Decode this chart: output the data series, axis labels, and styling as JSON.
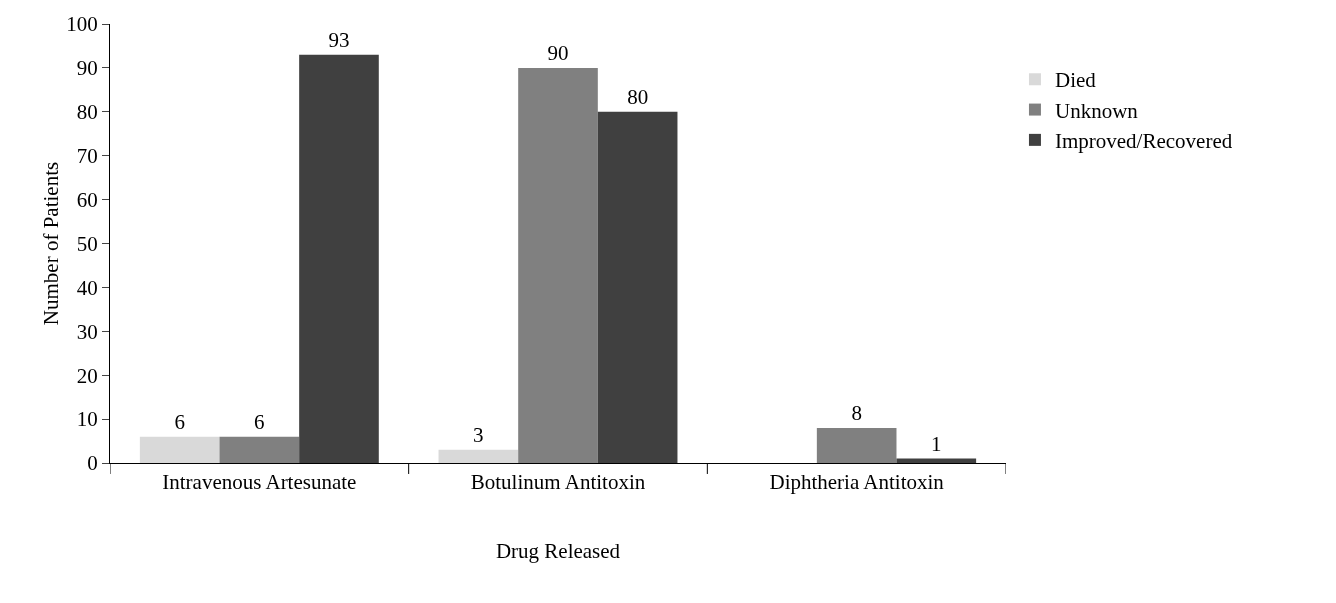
{
  "chart_data": {
    "type": "bar",
    "xlabel": "Drug Released",
    "ylabel": "Number of Patients",
    "categories": [
      "Intravenous Artesunate",
      "Botulinum Antitoxin",
      "Diphtheria Antitoxin"
    ],
    "series": [
      {
        "name": "Died",
        "color": "#d9d9d9",
        "values": [
          6,
          3,
          0
        ],
        "value_labels": [
          "6",
          "3",
          null
        ]
      },
      {
        "name": "Unknown",
        "color": "#808080",
        "values": [
          6,
          90,
          8
        ],
        "value_labels": [
          "6",
          "90",
          "8"
        ]
      },
      {
        "name": "Improved/Recovered",
        "color": "#404040",
        "values": [
          93,
          80,
          1
        ],
        "value_labels": [
          "93",
          "80",
          "1"
        ]
      }
    ],
    "ylim": [
      0,
      100
    ],
    "yticks": [
      0,
      10,
      20,
      30,
      40,
      50,
      60,
      70,
      80,
      90,
      100
    ],
    "grid": false,
    "legend": "right"
  }
}
